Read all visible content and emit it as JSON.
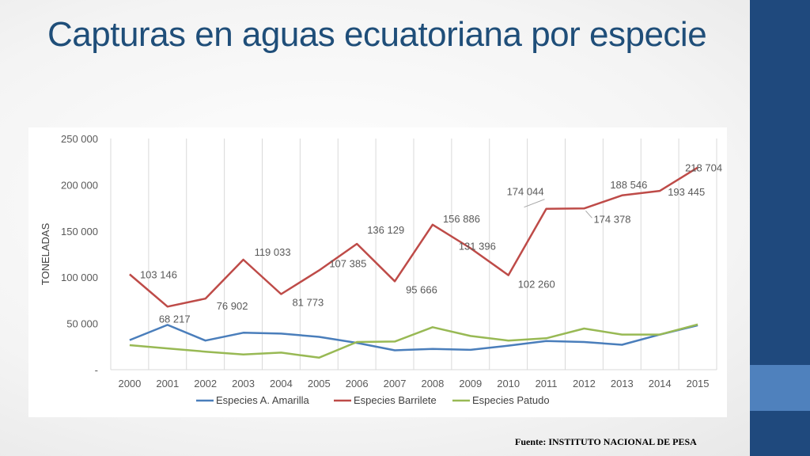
{
  "slide": {
    "title": "Capturas en aguas ecuatoriana por especie",
    "source": "Fuente: INSTITUTO NACIONAL DE PESA"
  },
  "colors": {
    "accent_dark": "#1f497d",
    "accent_light": "#4f81bd",
    "title": "#1f4e79"
  },
  "chart_data": {
    "type": "line",
    "title": "",
    "xlabel": "",
    "ylabel": "TONELADAS",
    "ylim": [
      0,
      250000
    ],
    "yticks": [
      0,
      50000,
      100000,
      150000,
      200000,
      250000
    ],
    "ytick_labels": [
      "-",
      "50 000",
      "100 000",
      "150 000",
      "200 000",
      "250 000"
    ],
    "grid": "vertical",
    "legend": "bottom",
    "categories": [
      "2000",
      "2001",
      "2002",
      "2003",
      "2004",
      "2005",
      "2006",
      "2007",
      "2008",
      "2009",
      "2010",
      "2011",
      "2012",
      "2013",
      "2014",
      "2015"
    ],
    "series": [
      {
        "name": "Especies A. Amarilla",
        "color": "#4a7ebb",
        "values": [
          32000,
          48500,
          31500,
          40000,
          39000,
          35500,
          29000,
          21000,
          22500,
          21500,
          26000,
          31000,
          30000,
          27000,
          38000,
          48000
        ],
        "labels": []
      },
      {
        "name": "Especies Barrilete",
        "color": "#be4b48",
        "values": [
          103146,
          68217,
          76902,
          119033,
          81773,
          107385,
          136129,
          95666,
          156886,
          131396,
          102260,
          174044,
          174378,
          188546,
          193445,
          218704
        ],
        "labels": [
          "103 146",
          "68 217",
          "76 902",
          "119 033",
          "81 773",
          "107 385",
          "136 129",
          "95 666",
          "156 886",
          "131 396",
          "102 260",
          "174 044",
          "174 378",
          "188 546",
          "193 445",
          "218 704"
        ]
      },
      {
        "name": "Especies Patudo",
        "color": "#98b954",
        "values": [
          26500,
          23000,
          19500,
          16500,
          18500,
          13000,
          30000,
          30500,
          46000,
          36500,
          31500,
          34000,
          44500,
          38000,
          38000,
          49000
        ],
        "labels": []
      }
    ]
  }
}
